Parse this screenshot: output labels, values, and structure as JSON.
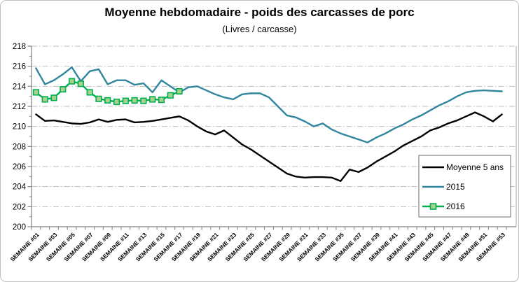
{
  "chart_data": {
    "type": "line",
    "title": "Moyenne hebdomadaire - poids des carcasses de porc",
    "subtitle": "(Livres / carcasse)",
    "ylim": [
      200,
      218
    ],
    "ytick_step": 2,
    "y_ticks": [
      200,
      202,
      204,
      206,
      208,
      210,
      212,
      214,
      216,
      218
    ],
    "grid": "horizontal dash-dot gridlines",
    "legend_position": "inside right",
    "x_label_every": 2,
    "categories": [
      "SEMAINE #01",
      "SEMAINE #02",
      "SEMAINE #03",
      "SEMAINE #04",
      "SEMAINE #05",
      "SEMAINE #06",
      "SEMAINE #07",
      "SEMAINE #08",
      "SEMAINE #09",
      "SEMAINE #10",
      "SEMAINE #11",
      "SEMAINE #12",
      "SEMAINE #13",
      "SEMAINE #14",
      "SEMAINE #15",
      "SEMAINE #16",
      "SEMAINE #17",
      "SEMAINE #18",
      "SEMAINE #19",
      "SEMAINE #20",
      "SEMAINE #21",
      "SEMAINE #22",
      "SEMAINE #23",
      "SEMAINE #24",
      "SEMAINE #25",
      "SEMAINE #26",
      "SEMAINE #27",
      "SEMAINE #28",
      "SEMAINE #29",
      "SEMAINE #30",
      "SEMAINE #31",
      "SEMAINE #32",
      "SEMAINE #33",
      "SEMAINE #34",
      "SEMAINE #35",
      "SEMAINE #36",
      "SEMAINE #37",
      "SEMAINE #38",
      "SEMAINE #39",
      "SEMAINE #40",
      "SEMAINE #41",
      "SEMAINE #42",
      "SEMAINE #43",
      "SEMAINE #44",
      "SEMAINE #45",
      "SEMAINE #46",
      "SEMAINE #47",
      "SEMAINE #48",
      "SEMAINE #49",
      "SEMAINE #50",
      "SEMAINE #51",
      "SEMAINE #52",
      "SEMAINE #53"
    ],
    "series": [
      {
        "name": "Moyenne 5 ans",
        "color": "#000000",
        "marker": "none",
        "values": [
          211.2,
          210.55,
          210.6,
          210.45,
          210.3,
          210.25,
          210.4,
          210.7,
          210.45,
          210.65,
          210.7,
          210.4,
          210.45,
          210.55,
          210.7,
          210.85,
          211.0,
          210.6,
          210.0,
          209.5,
          209.2,
          209.6,
          208.9,
          208.2,
          207.7,
          207.1,
          206.5,
          205.9,
          205.3,
          205.0,
          204.9,
          204.95,
          204.95,
          204.9,
          204.55,
          205.7,
          205.45,
          205.9,
          206.5,
          207.0,
          207.5,
          208.1,
          208.55,
          209.0,
          209.6,
          209.9,
          210.3,
          210.6,
          211.0,
          211.4,
          211.0,
          210.5,
          211.2
        ]
      },
      {
        "name": "2015",
        "color": "#31859C",
        "marker": "none",
        "values": [
          215.8,
          214.2,
          214.6,
          215.2,
          215.9,
          214.5,
          215.5,
          215.7,
          214.2,
          214.6,
          214.6,
          214.15,
          214.3,
          213.4,
          214.6,
          214.0,
          213.4,
          213.9,
          214.0,
          213.6,
          213.2,
          212.9,
          212.7,
          213.2,
          213.3,
          213.3,
          212.9,
          212.0,
          211.1,
          210.9,
          210.5,
          210.0,
          210.3,
          209.7,
          209.3,
          209.0,
          208.7,
          208.4,
          208.9,
          209.3,
          209.8,
          210.2,
          210.7,
          211.1,
          211.6,
          212.1,
          212.5,
          213.0,
          213.4,
          213.55,
          213.6,
          213.55,
          213.5
        ]
      },
      {
        "name": "2016",
        "color": "#00B050",
        "marker": "square",
        "marker_fill": "#A9D18E",
        "values": [
          213.4,
          212.7,
          212.85,
          213.7,
          214.5,
          214.25,
          213.4,
          212.75,
          212.6,
          212.45,
          212.55,
          212.6,
          212.55,
          212.7,
          212.65,
          213.1,
          213.5
        ]
      }
    ],
    "colors": {
      "gridline": "#BFBFBF",
      "axis": "#808080",
      "plot_right_border": "#A6A6A6",
      "legend_border": "#6E6E6E",
      "text": "#000000"
    }
  }
}
